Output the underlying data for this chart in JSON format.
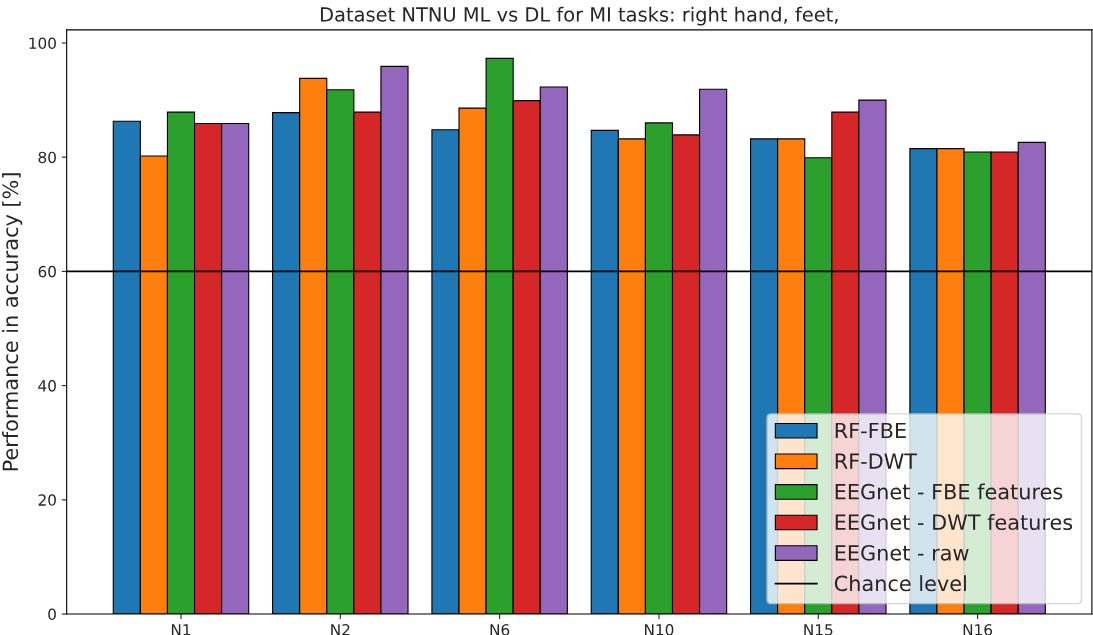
{
  "chart_data": {
    "type": "bar",
    "title": "Dataset NTNU ML vs DL for MI tasks: right hand, feet,",
    "ylabel": "Performance in accuracy [%]",
    "categories": [
      "N1",
      "N2",
      "N6",
      "N10",
      "N15",
      "N16"
    ],
    "series": [
      {
        "name": "RF-FBE",
        "color": "#1f77b4",
        "values": [
          86.3,
          87.8,
          84.8,
          84.7,
          83.2,
          81.5
        ]
      },
      {
        "name": "RF-DWT",
        "color": "#ff7f0e",
        "values": [
          80.2,
          93.8,
          88.6,
          83.2,
          83.2,
          81.5
        ]
      },
      {
        "name": "EEGnet - FBE features",
        "color": "#2ca02c",
        "values": [
          87.9,
          91.8,
          97.3,
          86.0,
          79.9,
          80.9
        ]
      },
      {
        "name": "EEGnet - DWT features",
        "color": "#d62728",
        "values": [
          85.9,
          87.9,
          89.9,
          83.9,
          87.9,
          80.9
        ]
      },
      {
        "name": "EEGnet - raw",
        "color": "#9467bd",
        "values": [
          85.9,
          95.9,
          92.3,
          91.9,
          90.0,
          82.6
        ]
      }
    ],
    "ref_lines": [
      {
        "axis": "y",
        "value": 60,
        "label": "Chance level",
        "color": "#000000"
      }
    ],
    "ylim": [
      0,
      102.3
    ],
    "yticks": [
      0,
      20,
      40,
      60,
      80,
      100
    ],
    "grid": false,
    "legend": "bottom right"
  }
}
